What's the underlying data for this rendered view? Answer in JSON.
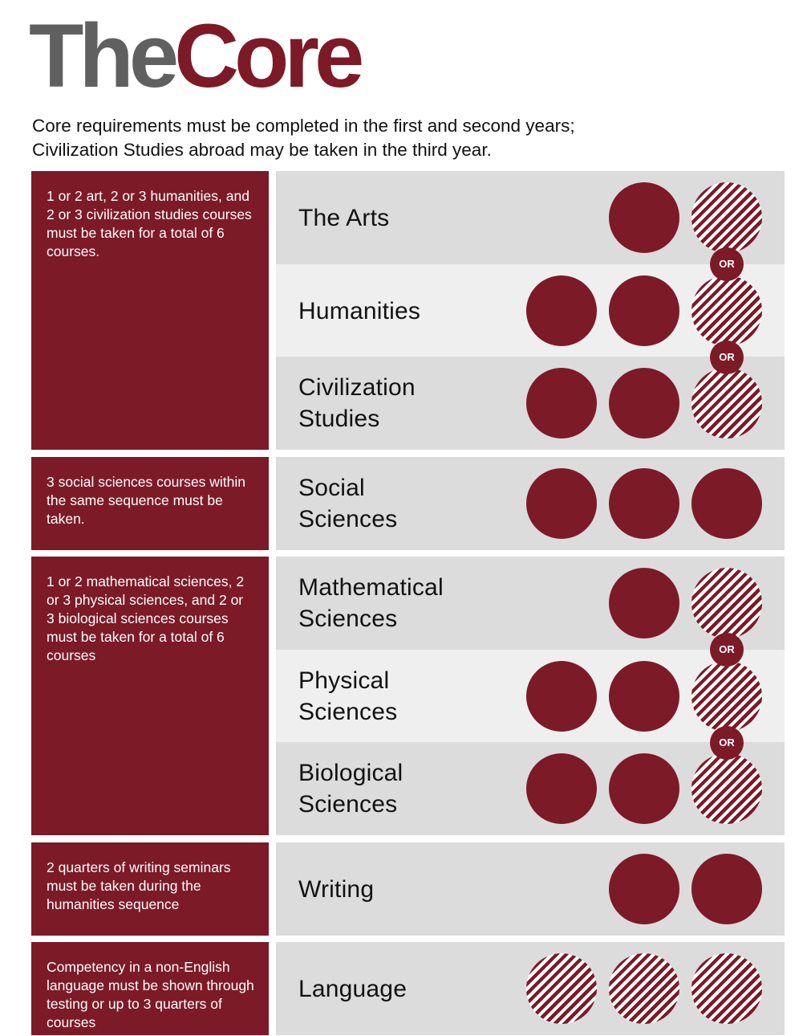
{
  "header": {
    "title_part1": "The",
    "title_part2": "Core",
    "subtitle_line1": "Core requirements must be completed in the first and second years;",
    "subtitle_line2": "Civilization Studies abroad may be taken in the third year."
  },
  "notes": [
    "1 or 2 art, 2 or 3 humanities, and 2 or 3 civilization studies courses must be taken for a total of 6 courses.",
    "3 social sciences courses within the same sequence must be taken.",
    "1 or 2 mathematical sciences, 2 or 3 physical sciences, and 2 or 3 biological sciences courses must be taken for a total of 6 courses",
    "2 quarters of writing seminars must be taken during the humanities sequence",
    "Competency in a non-English language must be shown through testing or up to 3 quarters of courses"
  ],
  "requirements": [
    {
      "line1": "The Arts",
      "line2": "",
      "required_courses": 1,
      "optional_courses": 1
    },
    {
      "line1": "Humanities",
      "line2": "",
      "required_courses": 2,
      "optional_courses": 1
    },
    {
      "line1": "Civilization",
      "line2": "Studies",
      "required_courses": 2,
      "optional_courses": 1
    },
    {
      "line1": "Social",
      "line2": "Sciences",
      "required_courses": 3,
      "optional_courses": 0
    },
    {
      "line1": "Mathematical",
      "line2": "Sciences",
      "required_courses": 1,
      "optional_courses": 1
    },
    {
      "line1": "Physical",
      "line2": "Sciences",
      "required_courses": 2,
      "optional_courses": 1
    },
    {
      "line1": "Biological",
      "line2": "Sciences",
      "required_courses": 2,
      "optional_courses": 1
    },
    {
      "line1": "Writing",
      "line2": "",
      "required_courses": 2,
      "optional_courses": 0
    },
    {
      "line1": "Language",
      "line2": "",
      "required_courses": 0,
      "optional_courses": 3
    }
  ],
  "or_label": "OR",
  "colors": {
    "brand": "#7d1a27",
    "title_gray": "#606060",
    "row_dark": "#dcdcdc",
    "row_light": "#efefef"
  }
}
